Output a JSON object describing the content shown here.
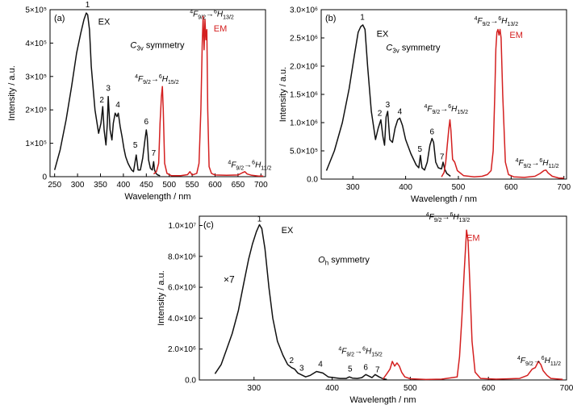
{
  "chart_data": [
    {
      "panel_label": "(a)",
      "type": "line",
      "xlabel": "Wavelength / nm",
      "ylabel": "Intensity / a.u.",
      "xlim": [
        240,
        710
      ],
      "ylim": [
        0,
        500000
      ],
      "xticks": [
        250,
        300,
        350,
        400,
        450,
        500,
        550,
        600,
        650,
        700
      ],
      "yticks": [
        {
          "value": 0,
          "label": "0"
        },
        {
          "value": 100000,
          "label": "1×10⁵"
        },
        {
          "value": 200000,
          "label": "2×10⁵"
        },
        {
          "value": 300000,
          "label": "3×10⁵"
        },
        {
          "value": 400000,
          "label": "4×10⁵"
        },
        {
          "value": 500000,
          "label": "5×10⁵"
        }
      ],
      "series": [
        {
          "name": "EX",
          "color": "#111111",
          "x": [
            250,
            262,
            275,
            287,
            298,
            307,
            314,
            319,
            322,
            326,
            330,
            338,
            346,
            351,
            355,
            358,
            362,
            365,
            367,
            371,
            375,
            378,
            382,
            386,
            389,
            393,
            397,
            401,
            405,
            410,
            414,
            418,
            422,
            425,
            428,
            432,
            437,
            442,
            447,
            450,
            452,
            455,
            459,
            463,
            466,
            468,
            471,
            475,
            480
          ],
          "y": [
            20000,
            80000,
            170000,
            270000,
            370000,
            430000,
            470000,
            490000,
            485000,
            440000,
            330000,
            200000,
            130000,
            160000,
            210000,
            140000,
            95000,
            160000,
            240000,
            140000,
            110000,
            160000,
            190000,
            180000,
            190000,
            150000,
            120000,
            85000,
            60000,
            40000,
            30000,
            20000,
            15000,
            40000,
            65000,
            20000,
            20000,
            55000,
            110000,
            140000,
            120000,
            50000,
            25000,
            20000,
            45000,
            20000,
            10000,
            5000,
            3000
          ]
        },
        {
          "name": "EM",
          "color": "#d42020",
          "x": [
            466,
            472,
            477,
            480,
            483,
            485,
            487,
            490,
            495,
            505,
            525,
            540,
            545,
            550,
            560,
            565,
            569,
            572,
            574,
            576,
            578,
            580,
            582,
            584,
            587,
            592,
            600,
            625,
            650,
            660,
            665,
            670,
            680,
            695,
            705
          ],
          "y": [
            8000,
            15000,
            40000,
            160000,
            240000,
            270000,
            200000,
            40000,
            10000,
            3000,
            3000,
            6000,
            15000,
            5000,
            10000,
            40000,
            200000,
            400000,
            480000,
            380000,
            470000,
            410000,
            440000,
            200000,
            30000,
            10000,
            5000,
            4000,
            5000,
            12000,
            15000,
            8000,
            4000,
            2000,
            2000
          ]
        }
      ]
    },
    {
      "panel_label": "(b)",
      "type": "line",
      "xlabel": "Wavelength / nm",
      "ylabel": "Intensity / a.u.",
      "xlim": [
        240,
        705
      ],
      "ylim": [
        0,
        3000000
      ],
      "xticks": [
        300,
        400,
        500,
        600,
        700
      ],
      "yticks": [
        {
          "value": 0,
          "label": "0.0"
        },
        {
          "value": 500000,
          "label": "5.0×10⁵"
        },
        {
          "value": 1000000,
          "label": "1.0×10⁶"
        },
        {
          "value": 1500000,
          "label": "1.5×10⁶"
        },
        {
          "value": 2000000,
          "label": "2.0×10⁶"
        },
        {
          "value": 2500000,
          "label": "2.5×10⁶"
        },
        {
          "value": 3000000,
          "label": "3.0×10⁶"
        }
      ],
      "series": [
        {
          "name": "EX",
          "color": "#111111",
          "x": [
            250,
            265,
            280,
            293,
            303,
            310,
            315,
            319,
            323,
            328,
            335,
            343,
            348,
            353,
            357,
            360,
            363,
            366,
            370,
            375,
            380,
            385,
            389,
            394,
            400,
            410,
            420,
            425,
            428,
            431,
            436,
            441,
            446,
            450,
            453,
            457,
            462,
            468,
            471,
            474,
            478,
            485
          ],
          "y": [
            150000,
            500000,
            1000000,
            1600000,
            2200000,
            2600000,
            2700000,
            2730000,
            2650000,
            2000000,
            1200000,
            700000,
            900000,
            1050000,
            750000,
            600000,
            1100000,
            1200000,
            700000,
            650000,
            900000,
            1050000,
            1080000,
            950000,
            700000,
            450000,
            250000,
            200000,
            420000,
            200000,
            160000,
            300000,
            600000,
            720000,
            650000,
            300000,
            200000,
            180000,
            300000,
            180000,
            100000,
            50000
          ]
        },
        {
          "name": "EM",
          "color": "#d42020",
          "x": [
            468,
            473,
            476,
            479,
            482,
            484,
            486,
            489,
            493,
            498,
            510,
            530,
            545,
            555,
            562,
            566,
            569,
            571,
            573,
            575,
            577,
            579,
            581,
            584,
            589,
            595,
            605,
            625,
            645,
            655,
            662,
            666,
            670,
            678,
            690,
            700
          ],
          "y": [
            40000,
            120000,
            300000,
            600000,
            900000,
            1050000,
            850000,
            350000,
            300000,
            150000,
            60000,
            40000,
            50000,
            80000,
            150000,
            500000,
            1500000,
            2300000,
            2600000,
            2650000,
            2550000,
            2650000,
            2500000,
            1500000,
            300000,
            80000,
            40000,
            30000,
            50000,
            100000,
            150000,
            160000,
            110000,
            50000,
            20000,
            15000
          ]
        }
      ]
    },
    {
      "panel_label": "(c)",
      "type": "line",
      "xlabel": "Wavelength / nm",
      "ylabel": "Intensity / a.u.",
      "xlim": [
        230,
        700
      ],
      "ylim": [
        0,
        10600000
      ],
      "xticks": [
        300,
        400,
        500,
        600,
        700
      ],
      "yticks": [
        {
          "value": 0,
          "label": "0.0"
        },
        {
          "value": 2000000,
          "label": "2.0×10⁶"
        },
        {
          "value": 4000000,
          "label": "4.0×10⁶"
        },
        {
          "value": 6000000,
          "label": "6.0×10⁶"
        },
        {
          "value": 8000000,
          "label": "8.0×10⁶"
        },
        {
          "value": 10000000.0,
          "label": "1.0×10⁷"
        }
      ],
      "series": [
        {
          "name": "EX",
          "color": "#111111",
          "x": [
            250,
            258,
            265,
            272,
            280,
            287,
            293,
            298,
            303,
            307,
            310,
            314,
            319,
            324,
            330,
            337,
            343,
            348,
            352,
            356,
            360,
            366,
            372,
            380,
            388,
            395,
            402,
            410,
            418,
            422,
            426,
            432,
            438,
            443,
            447,
            451,
            455,
            460,
            465,
            470
          ],
          "y": [
            400000,
            1000000,
            2000000,
            3000000,
            4500000,
            6300000,
            7800000,
            8800000,
            9600000,
            10050000,
            9800000,
            8500000,
            6000000,
            4000000,
            2500000,
            1600000,
            1000000,
            800000,
            700000,
            450000,
            350000,
            200000,
            300000,
            550000,
            450000,
            200000,
            150000,
            100000,
            100000,
            200000,
            120000,
            100000,
            150000,
            350000,
            250000,
            150000,
            350000,
            200000,
            80000,
            30000
          ]
        },
        {
          "name": "EM",
          "color": "#d42020",
          "x": [
            465,
            470,
            474,
            477,
            480,
            483,
            486,
            489,
            493,
            500,
            520,
            540,
            560,
            563,
            566,
            569,
            572,
            574,
            576,
            579,
            583,
            590,
            610,
            640,
            650,
            656,
            660,
            664,
            667,
            670,
            675,
            680,
            695
          ],
          "y": [
            50000,
            400000,
            700000,
            1200000,
            900000,
            1100000,
            900000,
            500000,
            200000,
            80000,
            30000,
            50000,
            200000,
            1500000,
            4000000,
            7000000,
            9700000,
            9000000,
            6500000,
            2500000,
            500000,
            100000,
            50000,
            100000,
            300000,
            700000,
            800000,
            1200000,
            1000000,
            600000,
            300000,
            100000,
            40000
          ]
        }
      ]
    }
  ],
  "panels": [
    {
      "ann_peaks": [
        {
          "text": "1",
          "x": 322,
          "y": 500000
        },
        {
          "text": "2",
          "x": 353,
          "y": 215000
        },
        {
          "text": "3",
          "x": 367,
          "y": 250000
        },
        {
          "text": "4",
          "x": 388,
          "y": 200000
        },
        {
          "text": "5",
          "x": 426,
          "y": 80000
        },
        {
          "text": "6",
          "x": 450,
          "y": 150000
        },
        {
          "text": "7",
          "x": 466,
          "y": 55000
        }
      ],
      "ex_label": {
        "text": "EX",
        "x": 345,
        "y": 455000
      },
      "em_label": {
        "text": "EM",
        "x": 597,
        "y": 435000
      },
      "sym_label": {
        "main": "C",
        "sub": "3v",
        "rest": " symmetry",
        "x": 415,
        "y": 385000
      },
      "trans_labels": [
        {
          "x": 545,
          "y": 480000,
          "f": "9/2",
          "h": "13/2"
        },
        {
          "x": 425,
          "y": 285000,
          "f": "9/2",
          "h": "15/2"
        },
        {
          "x": 628,
          "y": 28000,
          "f": "9/2",
          "h": "11/2"
        }
      ]
    },
    {
      "ann_peaks": [
        {
          "text": "1",
          "x": 318,
          "y": 2780000
        },
        {
          "text": "2",
          "x": 351,
          "y": 1080000
        },
        {
          "text": "3",
          "x": 366,
          "y": 1230000
        },
        {
          "text": "4",
          "x": 389,
          "y": 1110000
        },
        {
          "text": "5",
          "x": 427,
          "y": 440000
        },
        {
          "text": "6",
          "x": 450,
          "y": 750000
        },
        {
          "text": "7",
          "x": 469,
          "y": 310000
        }
      ],
      "ex_label": {
        "text": "EX",
        "x": 345,
        "y": 2520000
      },
      "em_label": {
        "text": "EM",
        "x": 597,
        "y": 2500000
      },
      "sym_label": {
        "main": "C",
        "sub": "3v",
        "rest": " symmetry",
        "x": 363,
        "y": 2280000
      },
      "trans_labels": [
        {
          "x": 530,
          "y": 2760000,
          "f": "9/2",
          "h": "13/2"
        },
        {
          "x": 435,
          "y": 1200000,
          "f": "9/2",
          "h": "15/2"
        },
        {
          "x": 608,
          "y": 240000,
          "f": "9/2",
          "h": "11/2"
        }
      ]
    },
    {
      "ann_peaks": [
        {
          "text": "1",
          "x": 307,
          "y": 10100000
        },
        {
          "text": "2",
          "x": 348,
          "y": 950000
        },
        {
          "text": "3",
          "x": 361,
          "y": 450000
        },
        {
          "text": "4",
          "x": 385,
          "y": 700000
        },
        {
          "text": "5",
          "x": 423,
          "y": 380000
        },
        {
          "text": "6",
          "x": 443,
          "y": 500000
        },
        {
          "text": "7",
          "x": 458,
          "y": 350000
        }
      ],
      "ex_label": {
        "text": "EX",
        "x": 335,
        "y": 9500000
      },
      "em_label": {
        "text": "EM",
        "x": 572,
        "y": 9000000
      },
      "sym_label": {
        "main": "O",
        "sub": "h",
        "rest": " symmetry",
        "x": 382,
        "y": 7600000
      },
      "times_label": {
        "text": "×7",
        "x": 261,
        "y": 6300000
      },
      "trans_labels": [
        {
          "x": 520,
          "y": 10400000,
          "f": "9/2",
          "h": "13/2"
        },
        {
          "x": 408,
          "y": 1700000,
          "f": "9/2",
          "h": "15/2"
        },
        {
          "x": 637,
          "y": 1100000,
          "f": "9/2",
          "h": "11/2"
        }
      ]
    }
  ]
}
